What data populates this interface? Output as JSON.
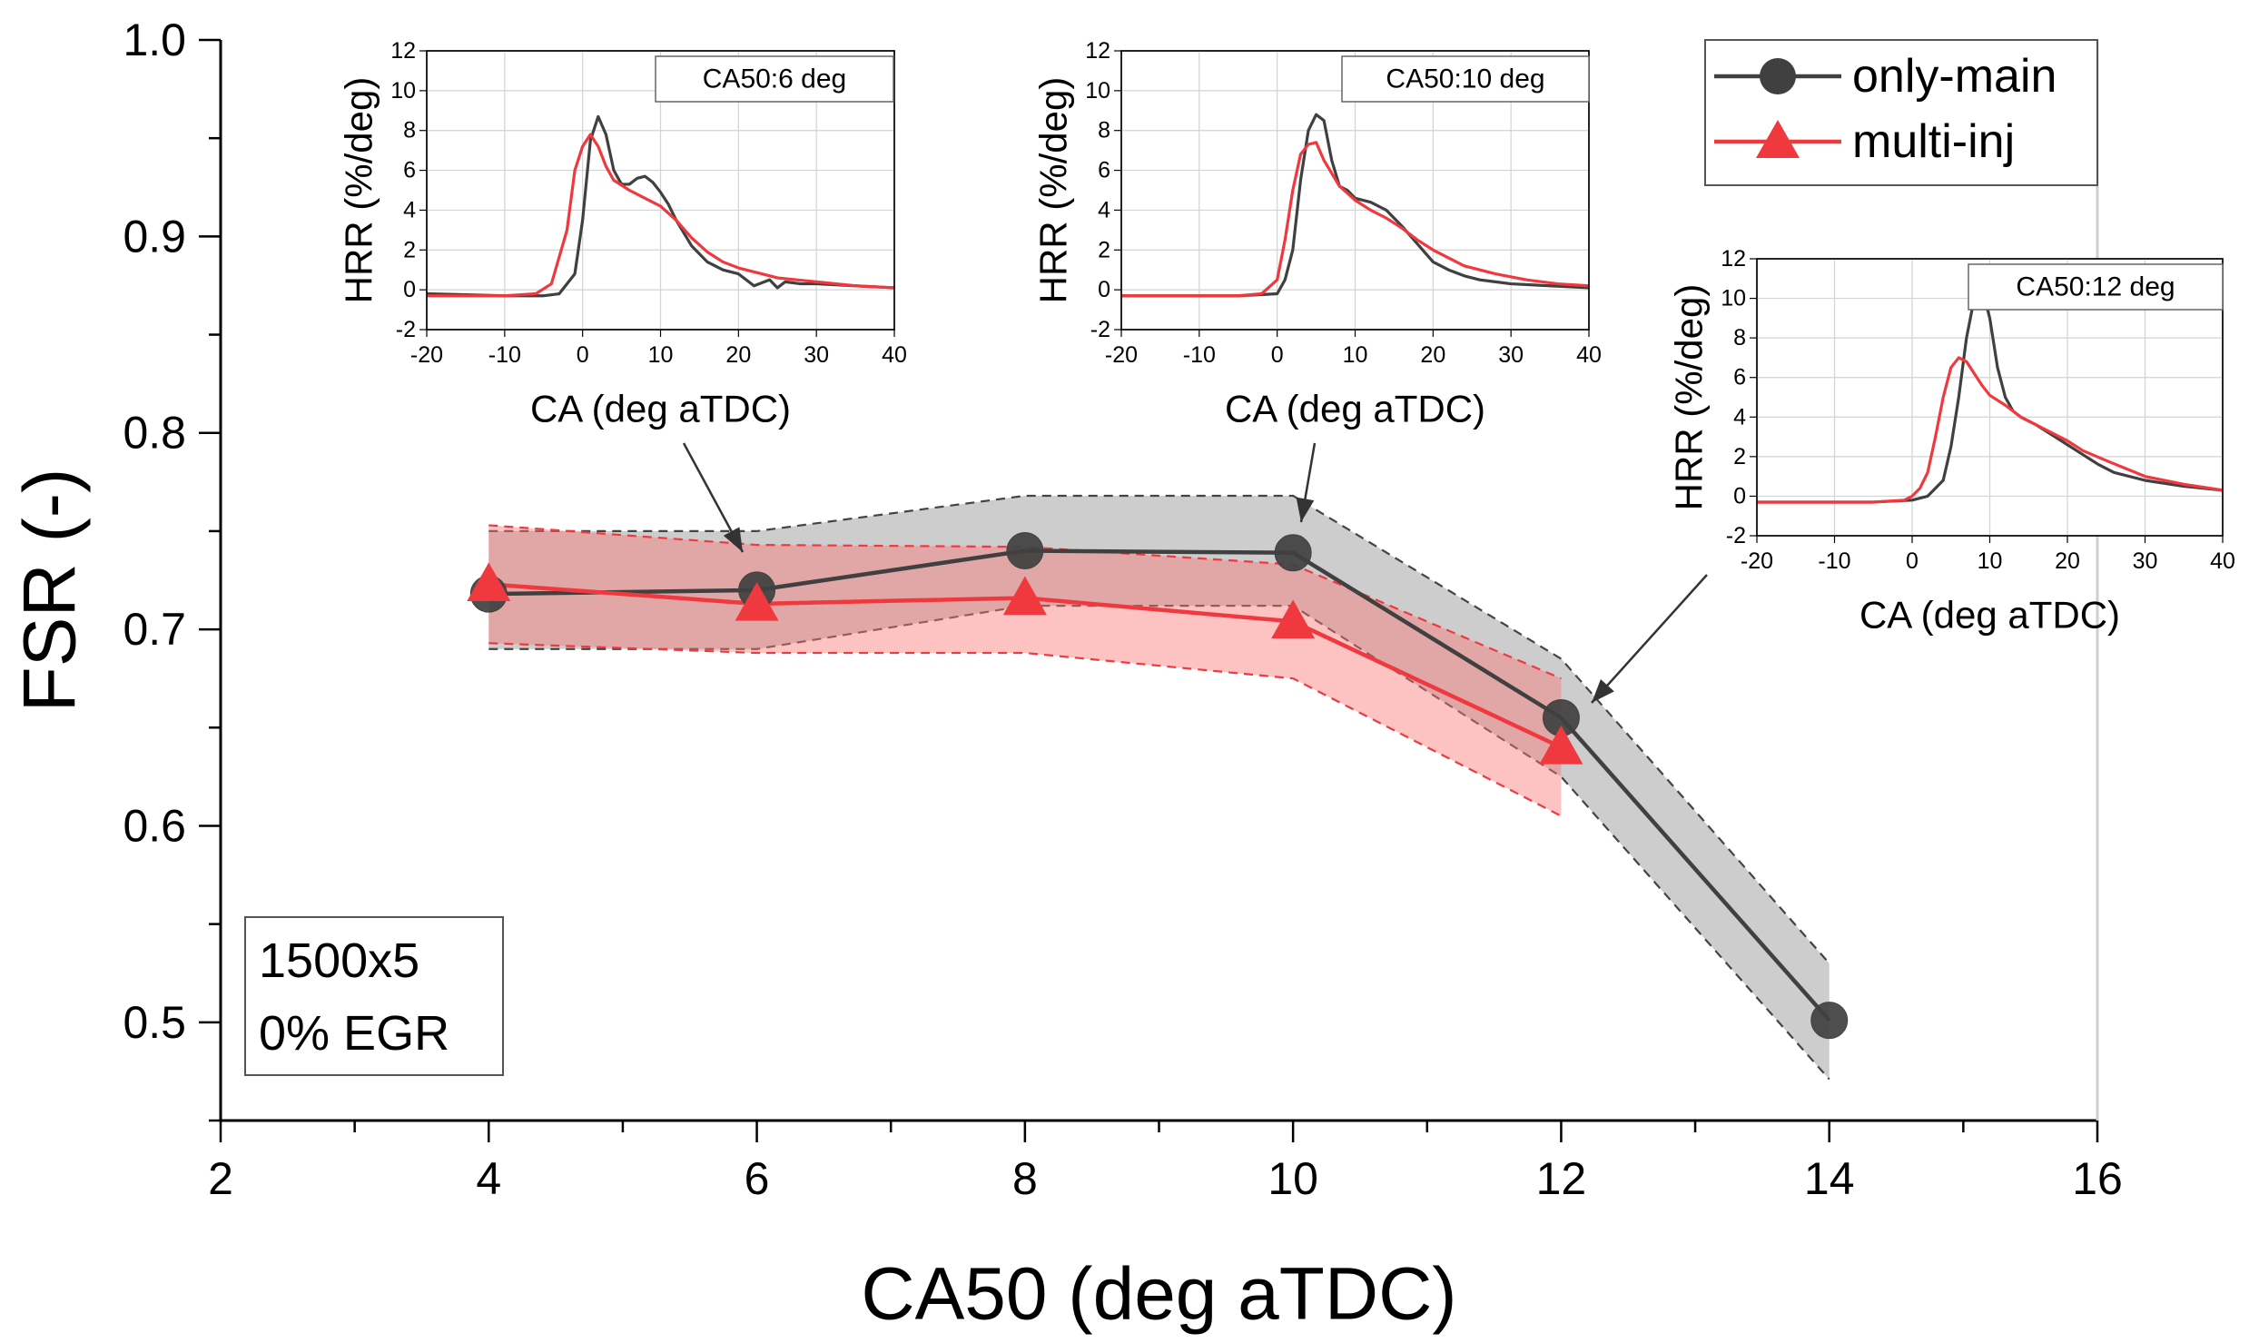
{
  "chart_data": [
    {
      "type": "line",
      "title": "",
      "xlabel": "CA50 (deg aTDC)",
      "ylabel": "FSR (-)",
      "xlim": [
        2,
        16
      ],
      "ylim": [
        0.45,
        1.0
      ],
      "x_ticks": [
        "2",
        "4",
        "6",
        "8",
        "10",
        "12",
        "14",
        "16"
      ],
      "y_ticks": [
        "0.5",
        "0.6",
        "0.7",
        "0.8",
        "0.9",
        "1.0"
      ],
      "grid": false,
      "legend_position": "top-right",
      "series": [
        {
          "name": "only-main",
          "color": "#404040",
          "marker": "circle",
          "x": [
            4,
            6,
            8,
            10,
            12,
            14
          ],
          "values": [
            0.718,
            0.72,
            0.74,
            0.739,
            0.655,
            0.501
          ],
          "band_upper": [
            0.75,
            0.75,
            0.768,
            0.768,
            0.685,
            0.53
          ],
          "band_lower": [
            0.69,
            0.69,
            0.712,
            0.712,
            0.625,
            0.471
          ]
        },
        {
          "name": "multi-inj",
          "color": "#f0393e",
          "marker": "triangle",
          "x": [
            4,
            6,
            8,
            10,
            12
          ],
          "values": [
            0.723,
            0.713,
            0.716,
            0.704,
            0.64
          ],
          "band_upper": [
            0.753,
            0.743,
            0.742,
            0.733,
            0.675
          ],
          "band_lower": [
            0.693,
            0.688,
            0.688,
            0.675,
            0.605
          ]
        }
      ],
      "annotation": {
        "line1": "1500x5",
        "line2": "0% EGR"
      }
    },
    {
      "type": "line",
      "title": "CA50:6 deg",
      "xlabel": "CA (deg aTDC)",
      "ylabel": "HRR (%/deg)",
      "xlim": [
        -20,
        40
      ],
      "ylim": [
        -2,
        12
      ],
      "x_ticks": [
        "-20",
        "-10",
        "0",
        "10",
        "20",
        "30",
        "40"
      ],
      "y_ticks": [
        "-2",
        "0",
        "2",
        "4",
        "6",
        "8",
        "10",
        "12"
      ],
      "grid": true,
      "series": [
        {
          "name": "only-main",
          "color": "#404040",
          "x": [
            -20,
            -10,
            -5,
            -3,
            -1,
            0,
            1,
            2,
            3,
            4,
            5,
            6,
            7,
            8,
            9,
            10,
            11,
            12,
            14,
            16,
            18,
            20,
            22,
            24,
            25,
            26,
            28,
            30,
            35,
            40
          ],
          "values": [
            -0.2,
            -0.3,
            -0.3,
            -0.2,
            0.8,
            3.5,
            7.5,
            8.7,
            7.8,
            6.0,
            5.3,
            5.3,
            5.6,
            5.7,
            5.4,
            4.9,
            4.3,
            3.5,
            2.2,
            1.4,
            1.0,
            0.8,
            0.2,
            0.5,
            0.1,
            0.4,
            0.3,
            0.3,
            0.2,
            0.1
          ]
        },
        {
          "name": "multi-inj",
          "color": "#f0393e",
          "x": [
            -20,
            -10,
            -6,
            -4,
            -2,
            -1,
            0,
            1,
            2,
            3,
            4,
            6,
            8,
            10,
            12,
            14,
            16,
            18,
            20,
            22,
            25,
            30,
            35,
            40
          ],
          "values": [
            -0.3,
            -0.3,
            -0.2,
            0.3,
            3.0,
            6.0,
            7.2,
            7.8,
            7.2,
            6.2,
            5.5,
            5.0,
            4.6,
            4.2,
            3.5,
            2.6,
            1.9,
            1.4,
            1.1,
            0.9,
            0.6,
            0.4,
            0.2,
            0.1
          ]
        }
      ]
    },
    {
      "type": "line",
      "title": "CA50:10 deg",
      "xlabel": "CA (deg aTDC)",
      "ylabel": "HRR (%/deg)",
      "xlim": [
        -20,
        40
      ],
      "ylim": [
        -2,
        12
      ],
      "x_ticks": [
        "-20",
        "-10",
        "0",
        "10",
        "20",
        "30",
        "40"
      ],
      "y_ticks": [
        "-2",
        "0",
        "2",
        "4",
        "6",
        "8",
        "10",
        "12"
      ],
      "grid": true,
      "series": [
        {
          "name": "only-main",
          "color": "#404040",
          "x": [
            -20,
            -5,
            0,
            1,
            2,
            3,
            4,
            5,
            6,
            7,
            8,
            9,
            10,
            12,
            14,
            16,
            18,
            20,
            22,
            24,
            26,
            28,
            30,
            35,
            40
          ],
          "values": [
            -0.3,
            -0.3,
            -0.2,
            0.5,
            2.0,
            5.5,
            8.0,
            8.8,
            8.5,
            6.5,
            5.2,
            5.0,
            4.6,
            4.4,
            4.0,
            3.2,
            2.3,
            1.4,
            1.0,
            0.7,
            0.5,
            0.4,
            0.3,
            0.2,
            0.1
          ]
        },
        {
          "name": "multi-inj",
          "color": "#f0393e",
          "x": [
            -20,
            -5,
            -2,
            0,
            1,
            2,
            3,
            4,
            5,
            6,
            8,
            10,
            12,
            14,
            16,
            18,
            20,
            24,
            28,
            32,
            36,
            40
          ],
          "values": [
            -0.3,
            -0.3,
            -0.2,
            0.5,
            2.5,
            5.0,
            6.8,
            7.3,
            7.4,
            6.5,
            5.2,
            4.5,
            4.0,
            3.6,
            3.1,
            2.5,
            2.0,
            1.2,
            0.8,
            0.5,
            0.3,
            0.2
          ]
        }
      ]
    },
    {
      "type": "line",
      "title": "CA50:12 deg",
      "xlabel": "CA (deg aTDC)",
      "ylabel": "HRR (%/deg)",
      "xlim": [
        -20,
        40
      ],
      "ylim": [
        -2,
        12
      ],
      "x_ticks": [
        "-20",
        "-10",
        "0",
        "10",
        "20",
        "30",
        "40"
      ],
      "y_ticks": [
        "-2",
        "0",
        "2",
        "4",
        "6",
        "8",
        "10",
        "12"
      ],
      "grid": true,
      "series": [
        {
          "name": "only-main",
          "color": "#404040",
          "x": [
            -20,
            -5,
            0,
            2,
            4,
            5,
            6,
            7,
            8,
            9,
            10,
            11,
            12,
            13,
            14,
            16,
            18,
            20,
            22,
            24,
            26,
            30,
            35,
            40
          ],
          "values": [
            -0.3,
            -0.3,
            -0.2,
            0.0,
            0.8,
            2.5,
            5.0,
            8.0,
            10.0,
            10.5,
            9.0,
            6.5,
            5.0,
            4.3,
            4.0,
            3.6,
            3.1,
            2.6,
            2.1,
            1.6,
            1.2,
            0.8,
            0.5,
            0.3
          ]
        },
        {
          "name": "multi-inj",
          "color": "#f0393e",
          "x": [
            -20,
            -5,
            -1,
            0,
            1,
            2,
            3,
            4,
            5,
            6,
            7,
            8,
            9,
            10,
            12,
            14,
            16,
            18,
            20,
            22,
            25,
            30,
            35,
            40
          ],
          "values": [
            -0.3,
            -0.3,
            -0.2,
            0.0,
            0.4,
            1.2,
            3.0,
            5.0,
            6.5,
            7.0,
            6.8,
            6.2,
            5.6,
            5.1,
            4.6,
            4.0,
            3.6,
            3.2,
            2.8,
            2.3,
            1.8,
            1.0,
            0.6,
            0.3
          ]
        }
      ]
    }
  ]
}
